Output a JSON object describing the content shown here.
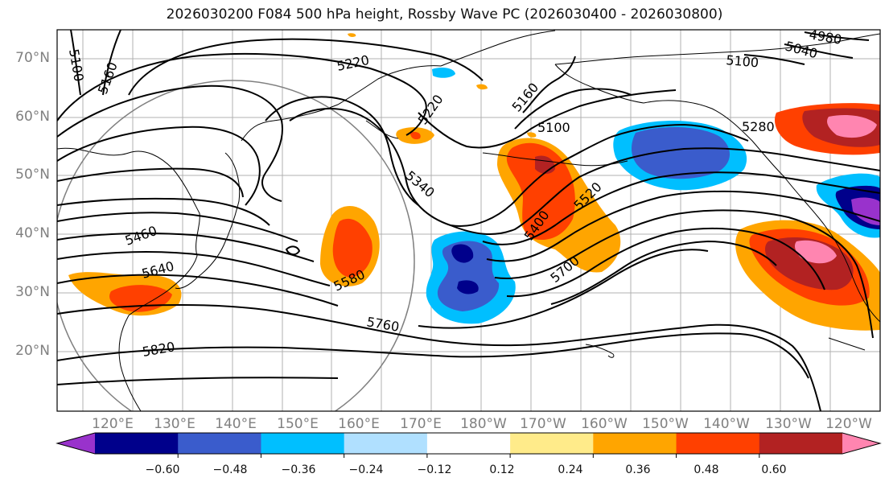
{
  "title": "2026030200 F084 500 hPa height, Rossby Wave PC (2026030400 - 2026030800)",
  "lat_labels": [
    "70°N",
    "60°N",
    "50°N",
    "40°N",
    "30°N",
    "20°N"
  ],
  "lon_labels": [
    "120°E",
    "130°E",
    "140°E",
    "150°E",
    "160°E",
    "170°E",
    "180°W",
    "170°W",
    "160°W",
    "150°W",
    "140°W",
    "130°W",
    "120°W"
  ],
  "contour_labels": [
    "5100",
    "5160",
    "5220",
    "5220",
    "5160",
    "5100",
    "5040",
    "4980",
    "5100",
    "5280",
    "5340",
    "5400",
    "5520",
    "5700",
    "5760",
    "5580",
    "5460",
    "5640",
    "5820"
  ],
  "colorbar": {
    "colors": [
      "#9932cc",
      "#00008b",
      "#3a5ccc",
      "#00bfff",
      "#b0e0ff",
      "#ffffff",
      "#ffeb8a",
      "#ffa500",
      "#ff4000",
      "#b22222",
      "#ff85b0"
    ],
    "tick_labels": [
      "−0.60",
      "−0.48",
      "−0.36",
      "−0.24",
      "−0.12",
      "0.12",
      "0.24",
      "0.36",
      "0.48",
      "0.60"
    ]
  }
}
